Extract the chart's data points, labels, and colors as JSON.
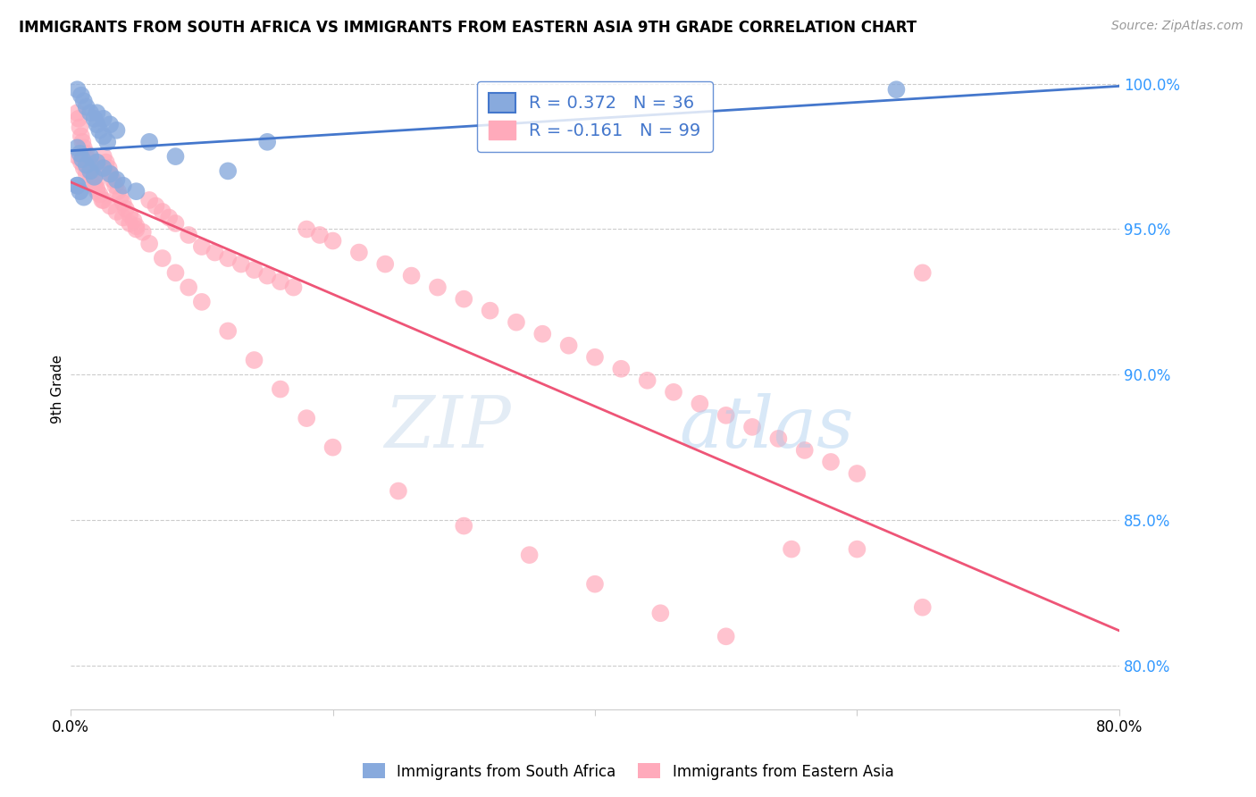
{
  "title": "IMMIGRANTS FROM SOUTH AFRICA VS IMMIGRANTS FROM EASTERN ASIA 9TH GRADE CORRELATION CHART",
  "source": "Source: ZipAtlas.com",
  "ylabel_left": "9th Grade",
  "legend_labels": [
    "Immigrants from South Africa",
    "Immigrants from Eastern Asia"
  ],
  "R_blue": 0.372,
  "N_blue": 36,
  "R_pink": -0.161,
  "N_pink": 99,
  "xlim": [
    0.0,
    0.8
  ],
  "ylim": [
    0.785,
    1.005
  ],
  "xticks": [
    0.0,
    0.2,
    0.4,
    0.6,
    0.8
  ],
  "xtick_labels": [
    "0.0%",
    "",
    "",
    "",
    "80.0%"
  ],
  "yticks_right": [
    0.8,
    0.85,
    0.9,
    0.95,
    1.0
  ],
  "ytick_right_labels": [
    "80.0%",
    "85.0%",
    "90.0%",
    "95.0%",
    "100.0%"
  ],
  "blue_color": "#88AADD",
  "pink_color": "#FFAABB",
  "blue_line_color": "#4477CC",
  "pink_line_color": "#EE5577",
  "watermark_zip": "ZIP",
  "watermark_atlas": "atlas",
  "blue_scatter_x": [
    0.005,
    0.008,
    0.01,
    0.012,
    0.015,
    0.018,
    0.02,
    0.022,
    0.025,
    0.028,
    0.005,
    0.007,
    0.009,
    0.012,
    0.015,
    0.018,
    0.02,
    0.025,
    0.03,
    0.035,
    0.005,
    0.007,
    0.01,
    0.015,
    0.02,
    0.025,
    0.03,
    0.035,
    0.04,
    0.05,
    0.06,
    0.08,
    0.12,
    0.15,
    0.005,
    0.63
  ],
  "blue_scatter_y": [
    0.998,
    0.996,
    0.994,
    0.992,
    0.99,
    0.988,
    0.986,
    0.984,
    0.982,
    0.98,
    0.978,
    0.976,
    0.974,
    0.972,
    0.97,
    0.968,
    0.99,
    0.988,
    0.986,
    0.984,
    0.965,
    0.963,
    0.961,
    0.975,
    0.973,
    0.971,
    0.969,
    0.967,
    0.965,
    0.963,
    0.98,
    0.975,
    0.97,
    0.98,
    0.965,
    0.998
  ],
  "pink_scatter_x": [
    0.005,
    0.006,
    0.007,
    0.008,
    0.009,
    0.01,
    0.012,
    0.013,
    0.015,
    0.016,
    0.018,
    0.019,
    0.02,
    0.022,
    0.024,
    0.025,
    0.027,
    0.029,
    0.03,
    0.032,
    0.034,
    0.036,
    0.038,
    0.04,
    0.042,
    0.045,
    0.048,
    0.05,
    0.055,
    0.06,
    0.065,
    0.07,
    0.075,
    0.08,
    0.09,
    0.1,
    0.11,
    0.12,
    0.13,
    0.14,
    0.15,
    0.16,
    0.17,
    0.18,
    0.19,
    0.2,
    0.22,
    0.24,
    0.26,
    0.28,
    0.3,
    0.32,
    0.34,
    0.36,
    0.38,
    0.4,
    0.42,
    0.44,
    0.46,
    0.48,
    0.5,
    0.52,
    0.54,
    0.56,
    0.58,
    0.6,
    0.65,
    0.005,
    0.008,
    0.01,
    0.012,
    0.015,
    0.018,
    0.02,
    0.025,
    0.03,
    0.035,
    0.04,
    0.045,
    0.05,
    0.06,
    0.07,
    0.08,
    0.09,
    0.1,
    0.12,
    0.14,
    0.16,
    0.18,
    0.2,
    0.25,
    0.3,
    0.35,
    0.4,
    0.45,
    0.5,
    0.55,
    0.6,
    0.65
  ],
  "pink_scatter_y": [
    0.99,
    0.988,
    0.985,
    0.982,
    0.98,
    0.978,
    0.976,
    0.974,
    0.972,
    0.97,
    0.968,
    0.966,
    0.964,
    0.962,
    0.96,
    0.975,
    0.973,
    0.971,
    0.969,
    0.967,
    0.965,
    0.963,
    0.961,
    0.959,
    0.957,
    0.955,
    0.953,
    0.951,
    0.949,
    0.96,
    0.958,
    0.956,
    0.954,
    0.952,
    0.948,
    0.944,
    0.942,
    0.94,
    0.938,
    0.936,
    0.934,
    0.932,
    0.93,
    0.95,
    0.948,
    0.946,
    0.942,
    0.938,
    0.934,
    0.93,
    0.926,
    0.922,
    0.918,
    0.914,
    0.91,
    0.906,
    0.902,
    0.898,
    0.894,
    0.89,
    0.886,
    0.882,
    0.878,
    0.874,
    0.87,
    0.866,
    0.935,
    0.975,
    0.973,
    0.971,
    0.969,
    0.967,
    0.965,
    0.963,
    0.96,
    0.958,
    0.956,
    0.954,
    0.952,
    0.95,
    0.945,
    0.94,
    0.935,
    0.93,
    0.925,
    0.915,
    0.905,
    0.895,
    0.885,
    0.875,
    0.86,
    0.848,
    0.838,
    0.828,
    0.818,
    0.81,
    0.84,
    0.84,
    0.82
  ]
}
